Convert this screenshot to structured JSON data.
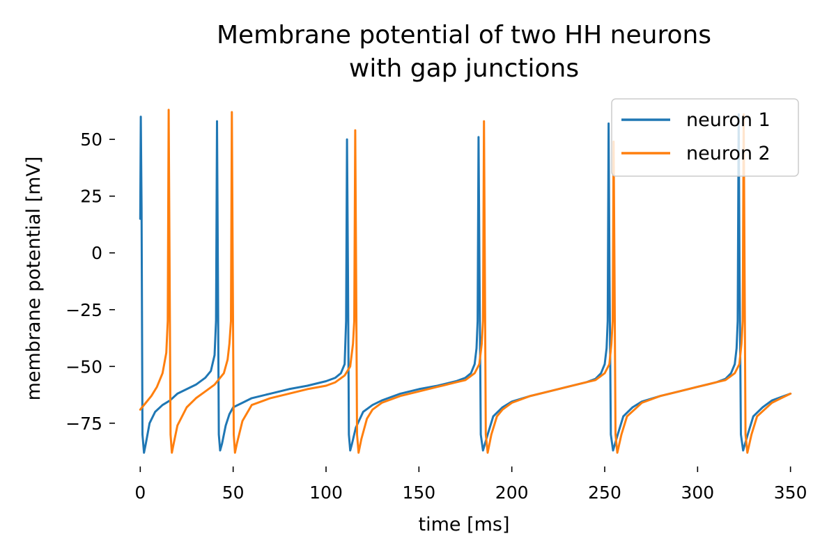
{
  "chart_data": {
    "type": "line",
    "title": "Membrane potential of two HH neurons\nwith gap junctions",
    "xlabel": "time [ms]",
    "ylabel": "membrane potential [mV]",
    "xlim": [
      -5,
      352
    ],
    "ylim": [
      -91,
      66
    ],
    "xticks": [
      0,
      50,
      100,
      150,
      200,
      250,
      300,
      350
    ],
    "yticks": [
      50,
      25,
      0,
      -25,
      -50,
      -75
    ],
    "xtick_labels": [
      "0",
      "50",
      "100",
      "150",
      "200",
      "250",
      "300",
      "350"
    ],
    "ytick_labels": [
      "50",
      "25",
      "0",
      "−25",
      "−50",
      "−75"
    ],
    "grid": false,
    "legend_position": "upper-right",
    "series": [
      {
        "name": "neuron 1",
        "color": "#1f77b4",
        "x": [
          0,
          0.3,
          0.7,
          1.2,
          2,
          3,
          5,
          8,
          12,
          16,
          20,
          25,
          30,
          35,
          38,
          40,
          40.8,
          41.3,
          41.8,
          42.3,
          43,
          44,
          46,
          48,
          50,
          55,
          60,
          70,
          80,
          90,
          100,
          105,
          108,
          110,
          110.8,
          111.3,
          111.8,
          112.3,
          113,
          114,
          116,
          120,
          125,
          130,
          140,
          150,
          160,
          170,
          175,
          178,
          180,
          181,
          181.6,
          182.1,
          182.6,
          183.3,
          184.5,
          187,
          190,
          195,
          200,
          210,
          220,
          230,
          240,
          245,
          248,
          250,
          251,
          251.6,
          252.1,
          252.6,
          253.3,
          254.5,
          257,
          260,
          265,
          270,
          280,
          290,
          300,
          310,
          315,
          318,
          320,
          321,
          321.6,
          322.1,
          322.6,
          323.3,
          324.5,
          327,
          330,
          335,
          340,
          345,
          350
        ],
        "y": [
          15,
          60,
          20,
          -80,
          -88,
          -84,
          -75,
          -70,
          -67,
          -65,
          -62,
          -60,
          -58,
          -55,
          -52,
          -45,
          -30,
          58,
          -10,
          -80,
          -87,
          -84,
          -76,
          -71,
          -68,
          -66,
          -64,
          -62,
          -60,
          -58.5,
          -56.5,
          -55,
          -53,
          -49,
          -30,
          50,
          -10,
          -80,
          -87,
          -84,
          -77,
          -70,
          -67,
          -65,
          -62,
          -60,
          -58.5,
          -56.5,
          -55,
          -53,
          -49,
          -42,
          -30,
          51,
          -10,
          -80,
          -87,
          -80,
          -72,
          -68,
          -65.5,
          -63,
          -61,
          -59,
          -57,
          -55.5,
          -53,
          -49,
          -42,
          -30,
          57,
          -10,
          -80,
          -87,
          -80,
          -72,
          -68,
          -65.5,
          -63,
          -61,
          -59,
          -57,
          -55.5,
          -53,
          -49,
          -42,
          -30,
          61,
          -10,
          -80,
          -87,
          -80,
          -72,
          -68,
          -65,
          -63.5,
          -62
        ]
      },
      {
        "name": "neuron 2",
        "color": "#ff7f0e",
        "x": [
          0,
          3,
          6,
          9,
          12,
          14,
          14.8,
          15.3,
          15.8,
          16.3,
          17,
          18,
          20,
          25,
          30,
          35,
          40,
          42,
          45,
          47,
          48,
          48.8,
          49.3,
          49.8,
          50.3,
          51,
          52,
          55,
          60,
          70,
          80,
          90,
          100,
          105,
          110,
          113,
          114.5,
          115.2,
          115.7,
          116.2,
          116.7,
          117.5,
          119,
          122,
          125,
          130,
          140,
          150,
          160,
          170,
          175,
          180,
          182.5,
          183.8,
          184.5,
          185,
          185.5,
          186,
          187,
          189,
          192,
          195,
          200,
          210,
          220,
          230,
          240,
          245,
          250,
          252.5,
          253.6,
          254.3,
          254.8,
          255.3,
          255.8,
          256.8,
          259,
          262,
          266,
          270,
          280,
          290,
          300,
          310,
          315,
          320,
          322.5,
          323.6,
          324.3,
          324.8,
          325.3,
          325.8,
          326.8,
          329,
          332,
          336,
          340,
          345,
          350
        ],
        "y": [
          -69,
          -66,
          -63,
          -59,
          -53,
          -44,
          -30,
          63,
          -10,
          -80,
          -88,
          -84,
          -76,
          -68,
          -64,
          -61,
          -58,
          -56,
          -53,
          -47,
          -40,
          -30,
          62,
          -10,
          -80,
          -88,
          -84,
          -74,
          -67,
          -64,
          -62,
          -60,
          -58.5,
          -57,
          -54,
          -50,
          -40,
          -30,
          54,
          -10,
          -80,
          -88,
          -82,
          -73,
          -69,
          -66,
          -63,
          -61,
          -59,
          -57,
          -56,
          -53,
          -49,
          -40,
          -30,
          58,
          -10,
          -80,
          -88,
          -80,
          -72,
          -69,
          -66,
          -63,
          -61,
          -59,
          -57,
          -56,
          -53,
          -49,
          -40,
          -30,
          49,
          -10,
          -80,
          -88,
          -80,
          -72,
          -69,
          -66,
          -63,
          -61,
          -59,
          -57,
          -56,
          -53,
          -49,
          -40,
          -30,
          61,
          -10,
          -80,
          -88,
          -80,
          -72,
          -69,
          -66,
          -64,
          -62
        ]
      }
    ]
  }
}
